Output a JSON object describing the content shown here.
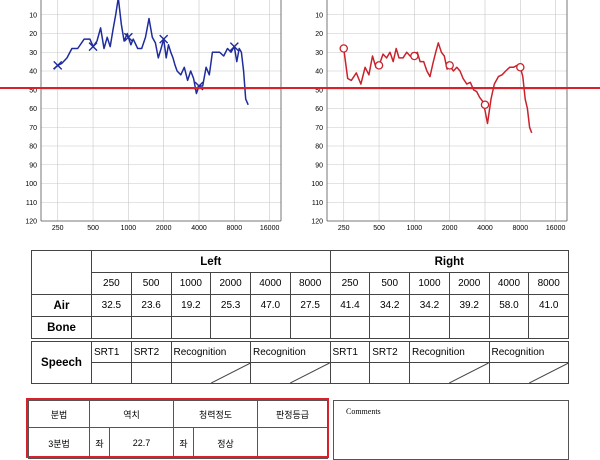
{
  "chart_data": [
    {
      "type": "line",
      "title": "",
      "xlabel": "",
      "ylabel": "",
      "x_scale": "log",
      "y_inverted": true,
      "xlim": [
        180,
        20000
      ],
      "ylim": [
        0,
        120
      ],
      "y_ticks": [
        10,
        20,
        30,
        40,
        50,
        60,
        70,
        80,
        90,
        100,
        110,
        120
      ],
      "x_ticks": [
        {
          "value": 250,
          "label": "250"
        },
        {
          "value": 500,
          "label": "500"
        },
        {
          "value": 1000,
          "label": "1000"
        },
        {
          "value": 2000,
          "label": "2000"
        },
        {
          "value": 4000,
          "label": "4000"
        },
        {
          "value": 8000,
          "label": "8000"
        },
        {
          "value": 16000,
          "label": "16000"
        }
      ],
      "grid": true,
      "reference_line": {
        "y": 50,
        "color": "#d9202b"
      },
      "color": "#1f2c9c",
      "marker": "x",
      "markers": [
        [
          250,
          37
        ],
        [
          500,
          27
        ],
        [
          1000,
          22
        ],
        [
          2000,
          23
        ],
        [
          4000,
          48
        ],
        [
          8000,
          27
        ]
      ],
      "series": [
        {
          "x": [
            230,
            250,
            270,
            300,
            330,
            370,
            420,
            470,
            500,
            540,
            580,
            620,
            660,
            700,
            740,
            780,
            820,
            870,
            920,
            980,
            1000,
            1050,
            1100,
            1200,
            1300,
            1400,
            1500,
            1600,
            1700,
            1800,
            1900,
            2000,
            2100,
            2200,
            2300,
            2400,
            2500,
            2600,
            2800,
            3000,
            3200,
            3400,
            3600,
            3800,
            4000,
            4300,
            4600,
            4900,
            5200,
            5600,
            6000,
            6500,
            7000,
            7500,
            8000,
            8400,
            8800,
            9200,
            9600,
            10000,
            10500
          ],
          "y": [
            39,
            37,
            36,
            33,
            28,
            28,
            23,
            23,
            27,
            24,
            17,
            28,
            22,
            27,
            18,
            10,
            1,
            15,
            24,
            20,
            22,
            26,
            23,
            28,
            28,
            22,
            12,
            22,
            25,
            33,
            28,
            23,
            33,
            26,
            30,
            33,
            37,
            40,
            42,
            38,
            45,
            40,
            44,
            52,
            48,
            48,
            38,
            42,
            30,
            30,
            30,
            32,
            28,
            30,
            27,
            35,
            28,
            30,
            40,
            55,
            58
          ]
        }
      ]
    },
    {
      "type": "line",
      "title": "",
      "xlabel": "",
      "ylabel": "",
      "x_scale": "log",
      "y_inverted": true,
      "xlim": [
        180,
        20000
      ],
      "ylim": [
        0,
        120
      ],
      "y_ticks": [
        10,
        20,
        30,
        40,
        50,
        60,
        70,
        80,
        90,
        100,
        110,
        120
      ],
      "x_ticks": [
        {
          "value": 250,
          "label": "250"
        },
        {
          "value": 500,
          "label": "500"
        },
        {
          "value": 1000,
          "label": "1000"
        },
        {
          "value": 2000,
          "label": "2000"
        },
        {
          "value": 4000,
          "label": "4000"
        },
        {
          "value": 8000,
          "label": "8000"
        },
        {
          "value": 16000,
          "label": "16000"
        }
      ],
      "grid": true,
      "reference_line": {
        "y": 50,
        "color": "#d9202b"
      },
      "color": "#c8232c",
      "marker": "o",
      "markers": [
        [
          250,
          28
        ],
        [
          500,
          37
        ],
        [
          1000,
          32
        ],
        [
          2000,
          37
        ],
        [
          4000,
          58
        ],
        [
          8000,
          38
        ]
      ],
      "series": [
        {
          "x": [
            250,
            270,
            290,
            320,
            350,
            380,
            410,
            440,
            470,
            500,
            540,
            580,
            620,
            660,
            700,
            740,
            800,
            860,
            920,
            980,
            1000,
            1060,
            1120,
            1200,
            1280,
            1360,
            1440,
            1520,
            1600,
            1700,
            1800,
            1900,
            2000,
            2150,
            2300,
            2450,
            2600,
            2800,
            3000,
            3200,
            3400,
            3600,
            3800,
            4000,
            4200,
            4500,
            4800,
            5200,
            5600,
            6000,
            6500,
            7000,
            7500,
            8000,
            8400,
            8800,
            9200,
            9600,
            10000
          ],
          "y": [
            28,
            44,
            45,
            41,
            47,
            38,
            42,
            32,
            38,
            37,
            31,
            33,
            30,
            35,
            28,
            33,
            33,
            30,
            32,
            33,
            32,
            30,
            35,
            35,
            40,
            43,
            36,
            30,
            25,
            30,
            32,
            39,
            37,
            40,
            38,
            40,
            44,
            47,
            46,
            50,
            51,
            54,
            56,
            61,
            68,
            55,
            47,
            43,
            42,
            40,
            38,
            38,
            37,
            38,
            43,
            55,
            60,
            70,
            73
          ]
        }
      ]
    }
  ],
  "freq_table": {
    "left_label": "Left",
    "right_label": "Right",
    "freqs_left": [
      "250",
      "500",
      "1000",
      "2000",
      "4000",
      "8000"
    ],
    "freqs_right": [
      "250",
      "500",
      "1000",
      "2000",
      "4000",
      "8000"
    ],
    "air_label": "Air",
    "bone_label": "Bone",
    "air_left": [
      "32.5",
      "23.6",
      "19.2",
      "25.3",
      "47.0",
      "27.5"
    ],
    "air_right": [
      "41.4",
      "34.2",
      "34.2",
      "39.2",
      "58.0",
      "41.0"
    ]
  },
  "speech_table": {
    "label": "Speech",
    "srt1": "SRT1",
    "srt2": "SRT2",
    "recog1": "Recognition",
    "recog2": "Recognition",
    "srt1_r": "SRT1",
    "srt2_r": "SRT2",
    "recog1_r": "Recognition",
    "recog2_r": "Recognition"
  },
  "result_table": {
    "col1": "분법",
    "col2": "역치",
    "col3": "청력정도",
    "col4": "판정등급",
    "row_label": "3분법",
    "side_left": "좌",
    "threshold_left": "22.7",
    "side_left_2": "좌",
    "degree_left": "정상"
  },
  "comments": {
    "label": "Comments"
  },
  "colors": {
    "border_highlight": "#d9202b",
    "reference_line": "#d9202b",
    "left_ear": "#1f2c9c",
    "right_ear": "#c8232c"
  }
}
